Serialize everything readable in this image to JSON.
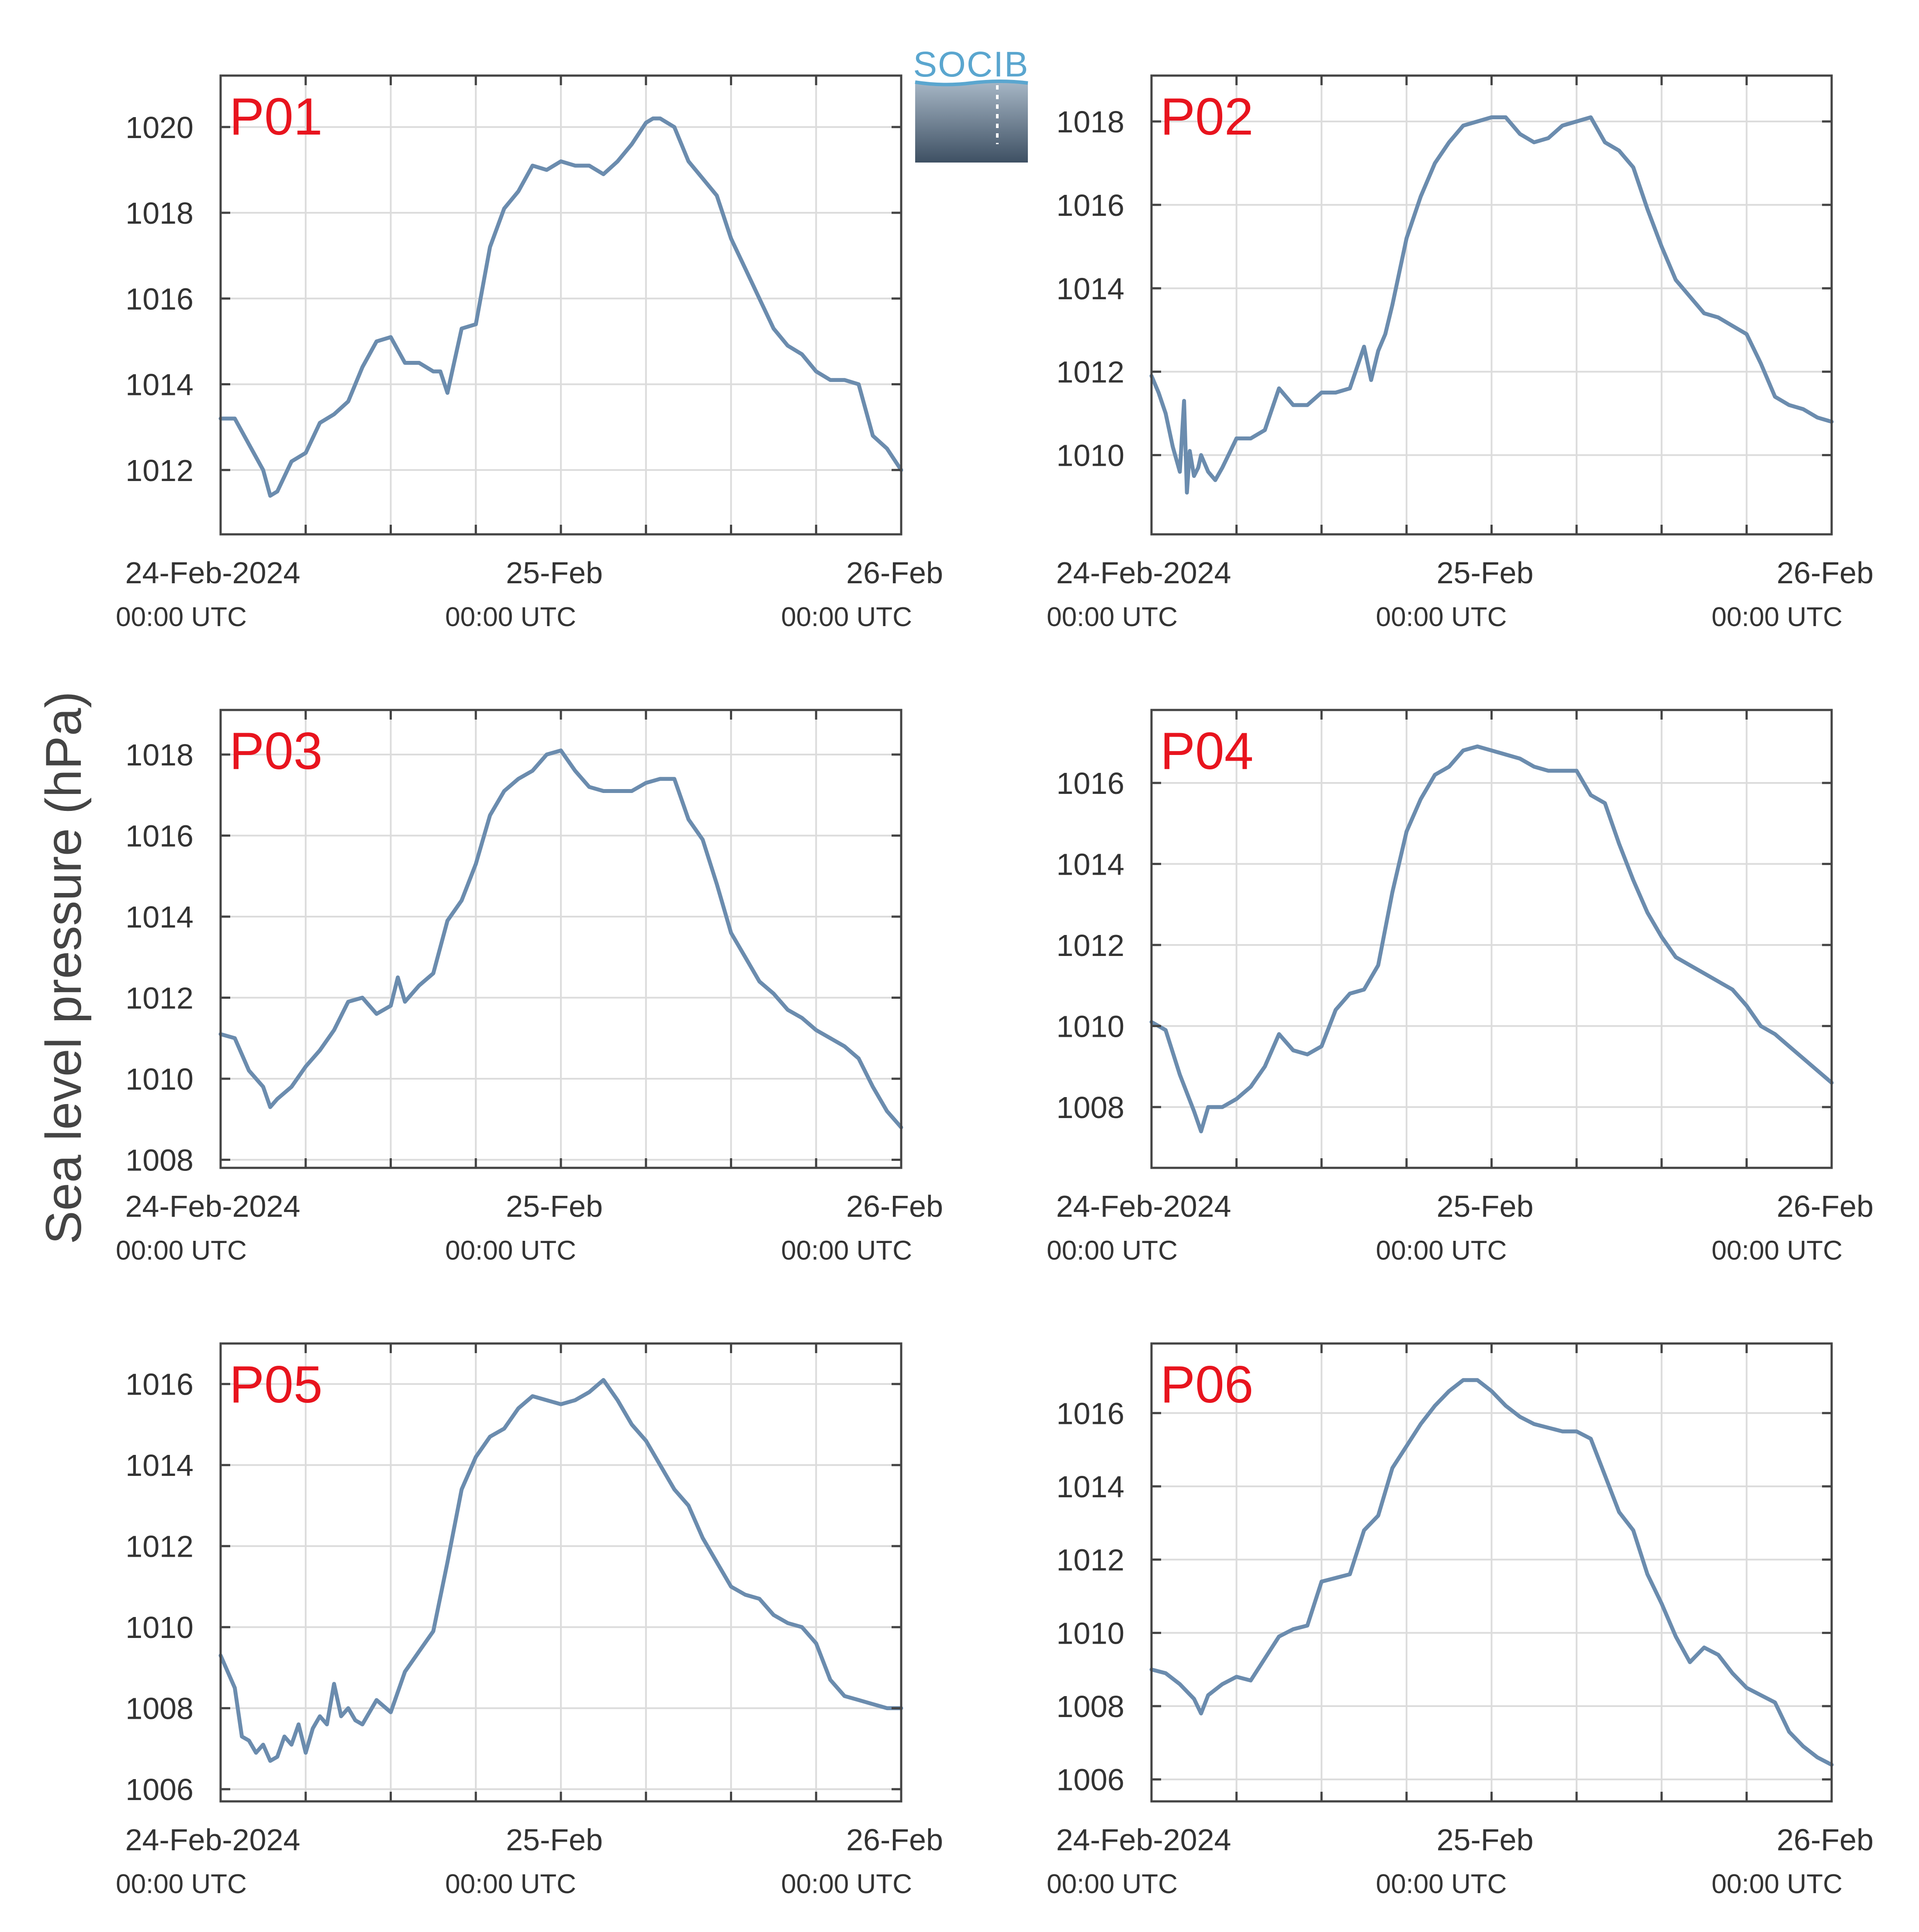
{
  "figure": {
    "ylabel": "Sea level pressure (hPa)",
    "logo": {
      "text": "SOCIB"
    }
  },
  "colors": {
    "series": "#6b8cae",
    "panel_label": "#e8141e",
    "grid": "#dcdcdc",
    "frame": "#444444"
  },
  "chart_data": [
    {
      "type": "line",
      "panel_label": "P01",
      "x_ticks": [
        {
          "main": "24-Feb-2024",
          "sub": "00:00 UTC"
        },
        {
          "main": "25-Feb",
          "sub": "00:00 UTC"
        },
        {
          "main": "26-Feb",
          "sub": "00:00 UTC"
        }
      ],
      "xlim_hours": [
        0,
        48
      ],
      "ylim": [
        1010.5,
        1021.2
      ],
      "yticks": [
        1012,
        1014,
        1016,
        1018,
        1020
      ],
      "grid": true,
      "series": [
        {
          "x_hours": [
            0,
            1,
            2,
            3,
            3.5,
            4,
            5,
            6,
            7,
            8,
            9,
            10,
            11,
            12,
            13,
            14,
            15,
            15.5,
            16,
            17,
            18,
            19,
            20,
            21,
            22,
            23,
            24,
            25,
            26,
            27,
            28,
            29,
            30,
            30.5,
            31,
            32,
            33,
            34,
            35,
            36,
            37,
            38,
            39,
            40,
            41,
            42,
            43,
            44,
            45,
            46,
            47,
            48
          ],
          "values": [
            1013.2,
            1013.2,
            1012.6,
            1012.0,
            1011.4,
            1011.5,
            1012.2,
            1012.4,
            1013.1,
            1013.3,
            1013.6,
            1014.4,
            1015.0,
            1015.1,
            1014.5,
            1014.5,
            1014.3,
            1014.3,
            1013.8,
            1015.3,
            1015.4,
            1017.2,
            1018.1,
            1018.5,
            1019.1,
            1019.0,
            1019.2,
            1019.1,
            1019.1,
            1018.9,
            1019.2,
            1019.6,
            1020.1,
            1020.2,
            1020.2,
            1020.0,
            1019.2,
            1018.8,
            1018.4,
            1017.4,
            1016.7,
            1016.0,
            1015.3,
            1014.9,
            1014.7,
            1014.3,
            1014.1,
            1014.1,
            1014.0,
            1012.8,
            1012.5,
            1012.0
          ]
        }
      ]
    },
    {
      "type": "line",
      "panel_label": "P02",
      "x_ticks": [
        {
          "main": "24-Feb-2024",
          "sub": "00:00 UTC"
        },
        {
          "main": "25-Feb",
          "sub": "00:00 UTC"
        },
        {
          "main": "26-Feb",
          "sub": "00:00 UTC"
        }
      ],
      "xlim_hours": [
        0,
        48
      ],
      "ylim": [
        1008.1,
        1019.1
      ],
      "yticks": [
        1010,
        1012,
        1014,
        1016,
        1018
      ],
      "grid": true,
      "series": [
        {
          "x_hours": [
            0,
            0.5,
            1,
            1.5,
            2,
            2.3,
            2.5,
            2.7,
            3,
            3.3,
            3.5,
            4,
            4.5,
            5,
            6,
            7,
            8,
            9,
            10,
            11,
            12,
            13,
            14,
            15,
            15.5,
            16,
            16.5,
            17,
            18,
            19,
            20,
            21,
            22,
            23,
            24,
            25,
            26,
            27,
            28,
            29,
            30,
            31,
            32,
            33,
            34,
            35,
            36,
            37,
            38,
            39,
            40,
            41,
            42,
            43,
            44,
            45,
            46,
            47,
            48
          ],
          "values": [
            1011.9,
            1011.5,
            1011.0,
            1010.2,
            1009.6,
            1011.3,
            1009.1,
            1010.1,
            1009.5,
            1009.7,
            1010.0,
            1009.6,
            1009.4,
            1009.7,
            1010.4,
            1010.4,
            1010.6,
            1011.6,
            1011.2,
            1011.2,
            1011.5,
            1011.5,
            1011.6,
            1012.6,
            1011.8,
            1012.5,
            1012.9,
            1013.6,
            1015.2,
            1016.2,
            1017.0,
            1017.5,
            1017.9,
            1018.0,
            1018.1,
            1018.1,
            1017.7,
            1017.5,
            1017.6,
            1017.9,
            1018.0,
            1018.1,
            1017.5,
            1017.3,
            1016.9,
            1015.9,
            1015.0,
            1014.2,
            1013.8,
            1013.4,
            1013.3,
            1013.1,
            1012.9,
            1012.2,
            1011.4,
            1011.2,
            1011.1,
            1010.9,
            1010.8
          ]
        }
      ]
    },
    {
      "type": "line",
      "panel_label": "P03",
      "x_ticks": [
        {
          "main": "24-Feb-2024",
          "sub": "00:00 UTC"
        },
        {
          "main": "25-Feb",
          "sub": "00:00 UTC"
        },
        {
          "main": "26-Feb",
          "sub": "00:00 UTC"
        }
      ],
      "xlim_hours": [
        0,
        48
      ],
      "ylim": [
        1007.8,
        1019.1
      ],
      "yticks": [
        1008,
        1010,
        1012,
        1014,
        1016,
        1018
      ],
      "grid": true,
      "series": [
        {
          "x_hours": [
            0,
            1,
            2,
            3,
            3.5,
            4,
            5,
            6,
            7,
            8,
            9,
            10,
            11,
            12,
            12.5,
            13,
            14,
            15,
            16,
            17,
            18,
            19,
            20,
            21,
            22,
            23,
            24,
            25,
            26,
            27,
            28,
            29,
            30,
            31,
            32,
            33,
            34,
            35,
            36,
            37,
            38,
            39,
            40,
            41,
            42,
            43,
            44,
            45,
            46,
            47,
            48
          ],
          "values": [
            1011.1,
            1011.0,
            1010.2,
            1009.8,
            1009.3,
            1009.5,
            1009.8,
            1010.3,
            1010.7,
            1011.2,
            1011.9,
            1012.0,
            1011.6,
            1011.8,
            1012.5,
            1011.9,
            1012.3,
            1012.6,
            1013.9,
            1014.4,
            1015.3,
            1016.5,
            1017.1,
            1017.4,
            1017.6,
            1018.0,
            1018.1,
            1017.6,
            1017.2,
            1017.1,
            1017.1,
            1017.1,
            1017.3,
            1017.4,
            1017.4,
            1016.4,
            1015.9,
            1014.8,
            1013.6,
            1013.0,
            1012.4,
            1012.1,
            1011.7,
            1011.5,
            1011.2,
            1011.0,
            1010.8,
            1010.5,
            1009.8,
            1009.2,
            1008.8
          ]
        }
      ]
    },
    {
      "type": "line",
      "panel_label": "P04",
      "x_ticks": [
        {
          "main": "24-Feb-2024",
          "sub": "00:00 UTC"
        },
        {
          "main": "25-Feb",
          "sub": "00:00 UTC"
        },
        {
          "main": "26-Feb",
          "sub": "00:00 UTC"
        }
      ],
      "xlim_hours": [
        0,
        48
      ],
      "ylim": [
        1006.5,
        1017.8
      ],
      "yticks": [
        1008,
        1010,
        1012,
        1014,
        1016
      ],
      "grid": true,
      "series": [
        {
          "x_hours": [
            0,
            1,
            2,
            3,
            3.5,
            4,
            5,
            6,
            7,
            8,
            9,
            10,
            11,
            12,
            13,
            13.5,
            14,
            15,
            16,
            17,
            18,
            19,
            20,
            21,
            22,
            23,
            24,
            25,
            26,
            27,
            28,
            29,
            30,
            31,
            32,
            33,
            34,
            35,
            36,
            37,
            38,
            39,
            40,
            41,
            42,
            43,
            44,
            45,
            46,
            47,
            48
          ],
          "values": [
            1010.1,
            1009.9,
            1008.8,
            1007.9,
            1007.4,
            1008.0,
            1008.0,
            1008.2,
            1008.5,
            1009.0,
            1009.8,
            1009.4,
            1009.3,
            1009.5,
            1010.4,
            1010.6,
            1010.8,
            1010.9,
            1011.5,
            1013.3,
            1014.8,
            1015.6,
            1016.2,
            1016.4,
            1016.8,
            1016.9,
            1016.8,
            1016.7,
            1016.6,
            1016.4,
            1016.3,
            1016.3,
            1016.3,
            1015.7,
            1015.5,
            1014.5,
            1013.6,
            1012.8,
            1012.2,
            1011.7,
            1011.5,
            1011.3,
            1011.1,
            1010.9,
            1010.5,
            1010.0,
            1009.8,
            1009.5,
            1009.2,
            1008.9,
            1008.6
          ]
        }
      ]
    },
    {
      "type": "line",
      "panel_label": "P05",
      "x_ticks": [
        {
          "main": "24-Feb-2024",
          "sub": "00:00 UTC"
        },
        {
          "main": "25-Feb",
          "sub": "00:00 UTC"
        },
        {
          "main": "26-Feb",
          "sub": "00:00 UTC"
        }
      ],
      "xlim_hours": [
        0,
        48
      ],
      "ylim": [
        1005.7,
        1017.0
      ],
      "yticks": [
        1006,
        1008,
        1010,
        1012,
        1014,
        1016
      ],
      "grid": true,
      "series": [
        {
          "x_hours": [
            0,
            1,
            1.5,
            2,
            2.5,
            3,
            3.5,
            4,
            4.5,
            5,
            5.5,
            6,
            6.5,
            7,
            7.5,
            8,
            8.5,
            9,
            9.5,
            10,
            11,
            12,
            13,
            14,
            15,
            16,
            17,
            18,
            19,
            20,
            21,
            22,
            23,
            24,
            25,
            26,
            27,
            28,
            29,
            30,
            31,
            32,
            33,
            34,
            35,
            36,
            37,
            38,
            39,
            40,
            41,
            42,
            43,
            44,
            45,
            46,
            47,
            48
          ],
          "values": [
            1009.3,
            1008.5,
            1007.3,
            1007.2,
            1006.9,
            1007.1,
            1006.7,
            1006.8,
            1007.3,
            1007.1,
            1007.6,
            1006.9,
            1007.5,
            1007.8,
            1007.6,
            1008.6,
            1007.8,
            1008.0,
            1007.7,
            1007.6,
            1008.2,
            1007.9,
            1008.9,
            1009.4,
            1009.9,
            1011.6,
            1013.4,
            1014.2,
            1014.7,
            1014.9,
            1015.4,
            1015.7,
            1015.6,
            1015.5,
            1015.6,
            1015.8,
            1016.1,
            1015.6,
            1015.0,
            1014.6,
            1014.0,
            1013.4,
            1013.0,
            1012.2,
            1011.6,
            1011.0,
            1010.8,
            1010.7,
            1010.3,
            1010.1,
            1010.0,
            1009.6,
            1008.7,
            1008.3,
            1008.2,
            1008.1,
            1008.0,
            1008.0
          ]
        }
      ]
    },
    {
      "type": "line",
      "panel_label": "P06",
      "x_ticks": [
        {
          "main": "24-Feb-2024",
          "sub": "00:00 UTC"
        },
        {
          "main": "25-Feb",
          "sub": "00:00 UTC"
        },
        {
          "main": "26-Feb",
          "sub": "00:00 UTC"
        }
      ],
      "xlim_hours": [
        0,
        48
      ],
      "ylim": [
        1005.4,
        1017.9
      ],
      "yticks": [
        1006,
        1008,
        1010,
        1012,
        1014,
        1016
      ],
      "grid": true,
      "series": [
        {
          "x_hours": [
            0,
            1,
            2,
            3,
            3.5,
            4,
            5,
            6,
            7,
            8,
            9,
            10,
            11,
            12,
            13,
            14,
            15,
            16,
            17,
            18,
            19,
            20,
            21,
            22,
            23,
            24,
            25,
            26,
            27,
            28,
            29,
            30,
            31,
            32,
            33,
            34,
            35,
            36,
            37,
            38,
            39,
            40,
            41,
            42,
            43,
            44,
            45,
            46,
            47,
            48
          ],
          "values": [
            1009.0,
            1008.9,
            1008.6,
            1008.2,
            1007.8,
            1008.3,
            1008.6,
            1008.8,
            1008.7,
            1009.3,
            1009.9,
            1010.1,
            1010.2,
            1011.4,
            1011.5,
            1011.6,
            1012.8,
            1013.2,
            1014.5,
            1015.1,
            1015.7,
            1016.2,
            1016.6,
            1016.9,
            1016.9,
            1016.6,
            1016.2,
            1015.9,
            1015.7,
            1015.6,
            1015.5,
            1015.5,
            1015.3,
            1014.3,
            1013.3,
            1012.8,
            1011.6,
            1010.8,
            1009.9,
            1009.2,
            1009.6,
            1009.4,
            1008.9,
            1008.5,
            1008.3,
            1008.1,
            1007.3,
            1006.9,
            1006.6,
            1006.4
          ]
        }
      ]
    }
  ]
}
